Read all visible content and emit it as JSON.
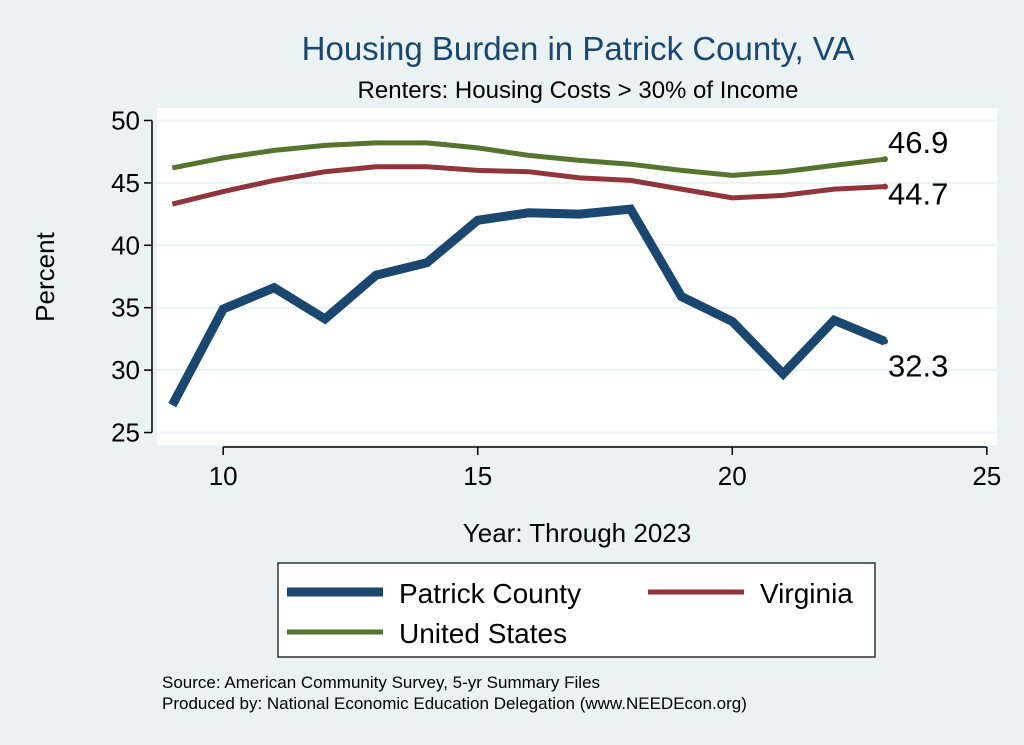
{
  "chart_data": {
    "type": "line",
    "title": "Housing Burden in Patrick County, VA",
    "subtitle": "Renters: Housing Costs > 30% of Income",
    "xlabel": "Year: Through 2023",
    "ylabel": "Percent",
    "xlim": [
      8.7,
      25.2
    ],
    "ylim": [
      24,
      51
    ],
    "x_ticks": [
      10,
      15,
      20,
      25
    ],
    "y_ticks": [
      25,
      30,
      35,
      40,
      45,
      50
    ],
    "grid": true,
    "legend_position": "bottom",
    "x": [
      9,
      10,
      11,
      12,
      13,
      14,
      15,
      16,
      17,
      18,
      19,
      20,
      21,
      22,
      23
    ],
    "series": [
      {
        "name": "Patrick County",
        "color": "#1a476f",
        "width": 9,
        "values": [
          27.2,
          34.9,
          36.6,
          34.1,
          37.6,
          38.6,
          42.0,
          42.6,
          42.5,
          42.9,
          35.9,
          33.9,
          29.7,
          34.0,
          32.3
        ],
        "end_label": "32.3"
      },
      {
        "name": "Virginia",
        "color": "#90353b",
        "width": 5,
        "values": [
          43.3,
          44.3,
          45.2,
          45.9,
          46.3,
          46.3,
          46.0,
          45.9,
          45.4,
          45.2,
          44.5,
          43.8,
          44.0,
          44.5,
          44.7
        ],
        "end_label": "44.7"
      },
      {
        "name": "United States",
        "color": "#55752f",
        "width": 5,
        "values": [
          46.2,
          47.0,
          47.6,
          48.0,
          48.2,
          48.2,
          47.8,
          47.2,
          46.8,
          46.5,
          46.0,
          45.6,
          45.9,
          46.4,
          46.9
        ],
        "end_label": "46.9"
      }
    ]
  },
  "source_lines": [
    "Source: American Community Survey, 5-yr Summary Files",
    "Produced by: National Economic Education Delegation (www.NEEDEcon.org)"
  ]
}
